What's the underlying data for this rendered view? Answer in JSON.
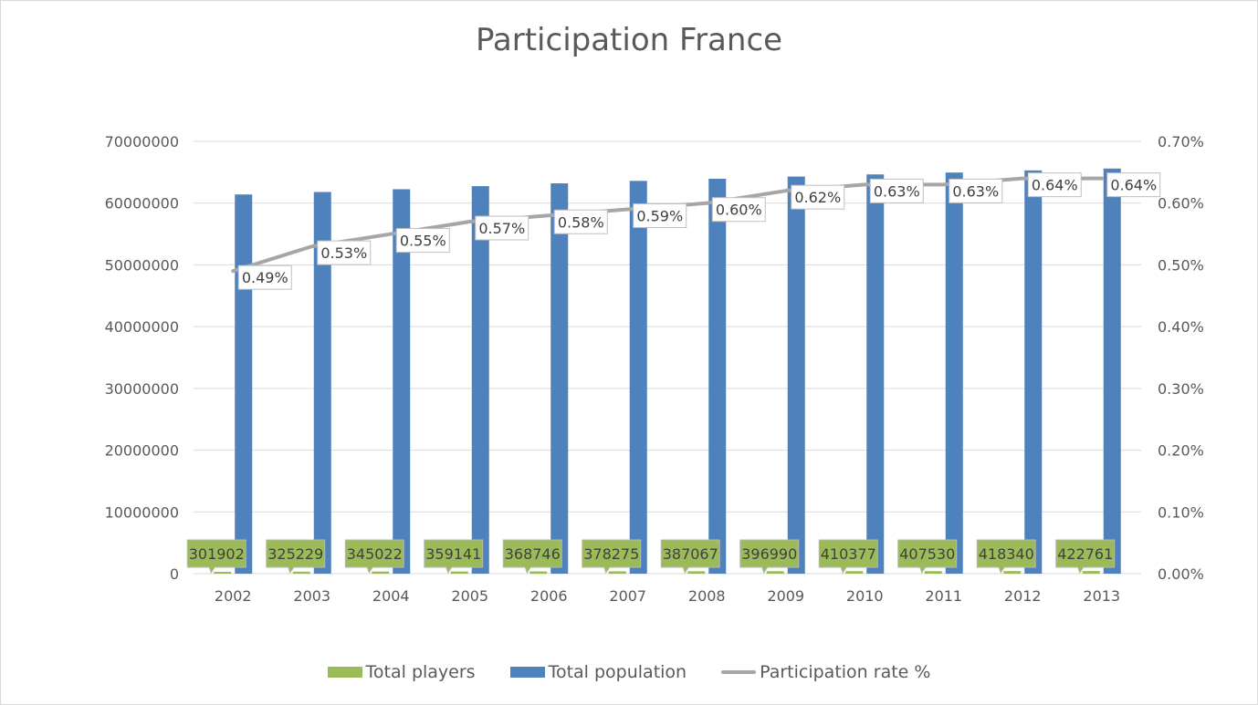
{
  "chart_data": {
    "type": "bar",
    "title": "Participation France",
    "categories": [
      "2002",
      "2003",
      "2004",
      "2005",
      "2006",
      "2007",
      "2008",
      "2009",
      "2010",
      "2011",
      "2012",
      "2013"
    ],
    "series": [
      {
        "name": "Total players",
        "type": "bar",
        "axis": "left",
        "color": "#9bbb59",
        "values": [
          301902,
          325229,
          345022,
          359141,
          368746,
          378275,
          387067,
          396990,
          410377,
          407530,
          418340,
          422761
        ],
        "labels": [
          "301902",
          "325229",
          "345022",
          "359141",
          "368746",
          "378275",
          "387067",
          "396990",
          "410377",
          "407530",
          "418340",
          "422761"
        ]
      },
      {
        "name": "Total population",
        "type": "bar",
        "axis": "left",
        "color": "#4f81bd",
        "values": [
          61400000,
          61800000,
          62250000,
          62750000,
          63200000,
          63600000,
          63950000,
          64300000,
          64650000,
          64950000,
          65300000,
          65600000
        ]
      },
      {
        "name": "Participation rate %",
        "type": "line",
        "axis": "right",
        "color": "#a6a6a6",
        "values": [
          0.49,
          0.53,
          0.55,
          0.57,
          0.58,
          0.59,
          0.6,
          0.62,
          0.63,
          0.63,
          0.64,
          0.64
        ],
        "labels": [
          "0.49%",
          "0.53%",
          "0.55%",
          "0.57%",
          "0.58%",
          "0.59%",
          "0.60%",
          "0.62%",
          "0.63%",
          "0.63%",
          "0.64%",
          "0.64%"
        ]
      }
    ],
    "y_left": {
      "min": 0,
      "max": 70000000,
      "ticks": [
        0,
        10000000,
        20000000,
        30000000,
        40000000,
        50000000,
        60000000,
        70000000
      ],
      "tick_labels": [
        "0",
        "10000000",
        "20000000",
        "30000000",
        "40000000",
        "50000000",
        "60000000",
        "70000000"
      ]
    },
    "y_right": {
      "min": 0,
      "max": 0.7,
      "ticks": [
        0,
        0.1,
        0.2,
        0.3,
        0.4,
        0.5,
        0.6,
        0.7
      ],
      "tick_labels": [
        "0.00%",
        "0.10%",
        "0.20%",
        "0.30%",
        "0.40%",
        "0.50%",
        "0.60%",
        "0.70%"
      ]
    },
    "grid": true,
    "legend_position": "bottom"
  }
}
